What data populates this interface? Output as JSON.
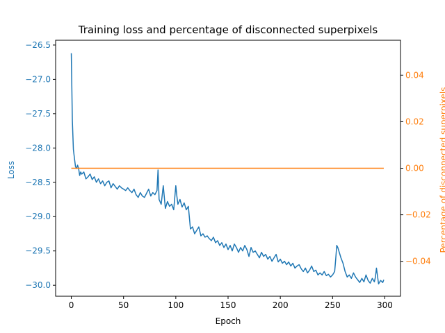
{
  "chart_data": {
    "type": "line",
    "title": "Training loss and percentage of disconnected superpixels",
    "xlabel": "Epoch",
    "ylabel_left": "Loss",
    "ylabel_right": "Percentage of disconnected superpixels",
    "xlim": [
      -15,
      315
    ],
    "ylim_left": [
      -30.16,
      -26.43
    ],
    "ylim_right": [
      -0.055,
      0.055
    ],
    "x_ticks": [
      0,
      50,
      100,
      150,
      200,
      250,
      300
    ],
    "y_ticks_left": [
      -30.0,
      -29.5,
      -29.0,
      -28.5,
      -28.0,
      -27.5,
      -27.0,
      -26.5
    ],
    "y_ticks_right": [
      -0.04,
      -0.02,
      0.0,
      0.02,
      0.04
    ],
    "grid": false,
    "legend": "none",
    "colors": {
      "loss": "#1f77b4",
      "percentage": "#ff7f0e",
      "axes": "#000000"
    },
    "series": [
      {
        "axis": "left",
        "color": "#1f77b4",
        "x": [
          0,
          1,
          2,
          3,
          4,
          5,
          6,
          7,
          8,
          9,
          10,
          12,
          14,
          16,
          18,
          20,
          22,
          24,
          26,
          28,
          30,
          32,
          34,
          36,
          38,
          40,
          42,
          44,
          46,
          48,
          50,
          52,
          54,
          56,
          58,
          60,
          62,
          64,
          66,
          68,
          70,
          72,
          74,
          76,
          78,
          80,
          82,
          83,
          84,
          86,
          88,
          90,
          92,
          94,
          96,
          98,
          100,
          101,
          102,
          104,
          106,
          108,
          110,
          112,
          114,
          116,
          118,
          120,
          122,
          124,
          126,
          128,
          130,
          132,
          134,
          136,
          138,
          140,
          142,
          144,
          146,
          148,
          150,
          152,
          154,
          156,
          158,
          160,
          162,
          164,
          166,
          168,
          170,
          172,
          174,
          176,
          178,
          180,
          182,
          184,
          186,
          188,
          190,
          192,
          194,
          196,
          198,
          200,
          202,
          204,
          206,
          208,
          210,
          212,
          214,
          216,
          218,
          220,
          222,
          224,
          226,
          228,
          230,
          232,
          234,
          236,
          238,
          240,
          242,
          244,
          246,
          248,
          250,
          252,
          253,
          254,
          255,
          256,
          257,
          258,
          260,
          262,
          264,
          266,
          268,
          270,
          272,
          274,
          276,
          278,
          280,
          282,
          284,
          286,
          288,
          290,
          291,
          292,
          294,
          296,
          298,
          299
        ],
        "y": [
          -26.62,
          -27.6,
          -28.02,
          -28.15,
          -28.27,
          -28.3,
          -28.25,
          -28.3,
          -28.4,
          -28.35,
          -28.38,
          -28.35,
          -28.45,
          -28.42,
          -28.38,
          -28.46,
          -28.42,
          -28.5,
          -28.45,
          -28.52,
          -28.48,
          -28.55,
          -28.5,
          -28.48,
          -28.58,
          -28.52,
          -28.56,
          -28.6,
          -28.55,
          -28.58,
          -28.6,
          -28.62,
          -28.58,
          -28.62,
          -28.65,
          -28.6,
          -28.68,
          -28.72,
          -28.65,
          -28.7,
          -28.72,
          -28.66,
          -28.6,
          -28.7,
          -28.65,
          -28.68,
          -28.62,
          -28.32,
          -28.75,
          -28.82,
          -28.55,
          -28.88,
          -28.78,
          -28.85,
          -28.82,
          -28.9,
          -28.55,
          -28.7,
          -28.82,
          -28.75,
          -28.86,
          -28.8,
          -28.9,
          -28.85,
          -29.18,
          -29.15,
          -29.25,
          -29.2,
          -29.15,
          -29.28,
          -29.25,
          -29.3,
          -29.28,
          -29.32,
          -29.35,
          -29.3,
          -29.38,
          -29.35,
          -29.42,
          -29.38,
          -29.45,
          -29.4,
          -29.48,
          -29.42,
          -29.5,
          -29.4,
          -29.45,
          -29.52,
          -29.45,
          -29.5,
          -29.42,
          -29.48,
          -29.58,
          -29.45,
          -29.52,
          -29.5,
          -29.55,
          -29.6,
          -29.52,
          -29.58,
          -29.55,
          -29.62,
          -29.58,
          -29.65,
          -29.6,
          -29.55,
          -29.66,
          -29.62,
          -29.68,
          -29.65,
          -29.7,
          -29.66,
          -29.72,
          -29.68,
          -29.75,
          -29.72,
          -29.7,
          -29.76,
          -29.8,
          -29.75,
          -29.82,
          -29.78,
          -29.72,
          -29.8,
          -29.78,
          -29.85,
          -29.82,
          -29.85,
          -29.8,
          -29.86,
          -29.84,
          -29.88,
          -29.85,
          -29.8,
          -29.62,
          -29.42,
          -29.45,
          -29.5,
          -29.55,
          -29.6,
          -29.68,
          -29.8,
          -29.88,
          -29.85,
          -29.9,
          -29.82,
          -29.88,
          -29.92,
          -29.96,
          -29.9,
          -29.95,
          -29.85,
          -29.93,
          -29.97,
          -29.9,
          -29.95,
          -29.88,
          -29.75,
          -29.98,
          -29.93,
          -29.96,
          -29.92
        ]
      },
      {
        "axis": "right",
        "color": "#ff7f0e",
        "x": [
          0,
          299
        ],
        "y": [
          0,
          0
        ]
      }
    ]
  }
}
